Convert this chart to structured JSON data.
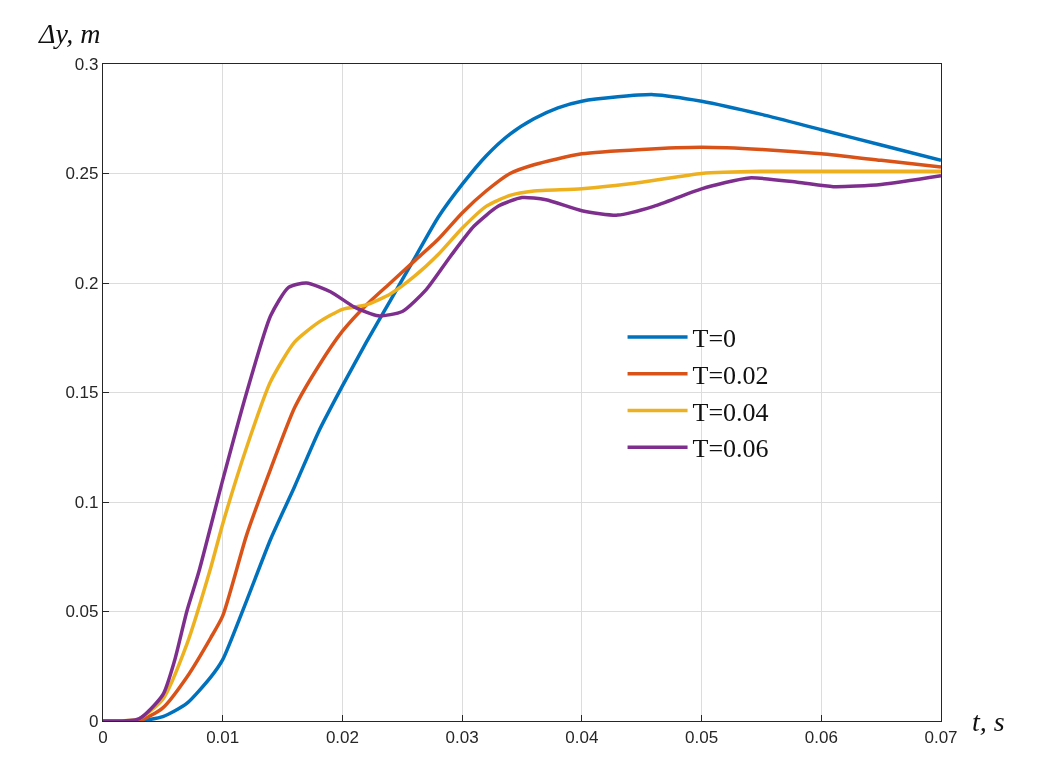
{
  "chart_data": {
    "type": "line",
    "xlabel": "t, s",
    "ylabel": "Δy, m",
    "xlim": [
      0,
      0.07
    ],
    "xticks": [
      0,
      0.01,
      0.02,
      0.03,
      0.04,
      0.05,
      0.06,
      0.07
    ],
    "ylim": [
      0,
      0.3
    ],
    "yticks": [
      0,
      0.05,
      0.1,
      0.15,
      0.2,
      0.25,
      0.3
    ],
    "grid": true,
    "legend": "right",
    "marker": "none",
    "line_style": "solid",
    "series": [
      {
        "name": "T=0",
        "color": "#0072bd",
        "x": [
          0,
          0.003,
          0.005,
          0.007,
          0.009,
          0.01,
          0.012,
          0.014,
          0.016,
          0.018,
          0.02,
          0.022,
          0.024,
          0.026,
          0.028,
          0.03,
          0.032,
          0.034,
          0.036,
          0.038,
          0.04,
          0.043,
          0.046,
          0.05,
          0.055,
          0.06,
          0.065,
          0.07
        ],
        "values": [
          0,
          0,
          0.002,
          0.008,
          0.02,
          0.028,
          0.055,
          0.083,
          0.107,
          0.132,
          0.153,
          0.173,
          0.192,
          0.211,
          0.23,
          0.245,
          0.258,
          0.268,
          0.275,
          0.28,
          0.283,
          0.285,
          0.286,
          0.283,
          0.277,
          0.27,
          0.263,
          0.256
        ]
      },
      {
        "name": "T=0.02",
        "color": "#d95319",
        "x": [
          0,
          0.003,
          0.005,
          0.007,
          0.009,
          0.01,
          0.012,
          0.014,
          0.016,
          0.018,
          0.02,
          0.022,
          0.024,
          0.026,
          0.028,
          0.03,
          0.032,
          0.034,
          0.036,
          0.04,
          0.045,
          0.05,
          0.055,
          0.06,
          0.065,
          0.07
        ],
        "values": [
          0,
          0,
          0.006,
          0.02,
          0.038,
          0.048,
          0.085,
          0.115,
          0.143,
          0.162,
          0.178,
          0.19,
          0.2,
          0.21,
          0.22,
          0.232,
          0.242,
          0.25,
          0.254,
          0.259,
          0.261,
          0.262,
          0.261,
          0.259,
          0.256,
          0.253
        ]
      },
      {
        "name": "T=0.04",
        "color": "#edb120",
        "x": [
          0,
          0.003,
          0.005,
          0.007,
          0.009,
          0.01,
          0.012,
          0.014,
          0.016,
          0.018,
          0.02,
          0.022,
          0.024,
          0.026,
          0.028,
          0.03,
          0.032,
          0.034,
          0.036,
          0.04,
          0.045,
          0.05,
          0.055,
          0.06,
          0.065,
          0.07
        ],
        "values": [
          0,
          0.001,
          0.01,
          0.035,
          0.07,
          0.09,
          0.125,
          0.155,
          0.173,
          0.182,
          0.188,
          0.19,
          0.195,
          0.203,
          0.213,
          0.225,
          0.235,
          0.24,
          0.242,
          0.243,
          0.246,
          0.25,
          0.251,
          0.251,
          0.251,
          0.251
        ]
      },
      {
        "name": "T=0.06",
        "color": "#7e2f8e",
        "x": [
          0,
          0.003,
          0.005,
          0.006,
          0.007,
          0.008,
          0.01,
          0.012,
          0.014,
          0.0155,
          0.017,
          0.019,
          0.021,
          0.023,
          0.025,
          0.027,
          0.029,
          0.031,
          0.033,
          0.035,
          0.037,
          0.04,
          0.043,
          0.046,
          0.05,
          0.054,
          0.058,
          0.061,
          0.065,
          0.07
        ],
        "values": [
          0,
          0.001,
          0.012,
          0.028,
          0.05,
          0.068,
          0.11,
          0.15,
          0.185,
          0.198,
          0.2,
          0.196,
          0.189,
          0.185,
          0.187,
          0.197,
          0.212,
          0.226,
          0.235,
          0.239,
          0.238,
          0.233,
          0.231,
          0.235,
          0.243,
          0.248,
          0.246,
          0.244,
          0.245,
          0.249
        ]
      }
    ]
  }
}
